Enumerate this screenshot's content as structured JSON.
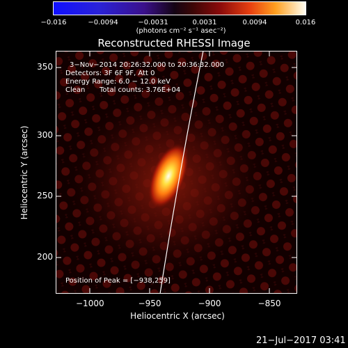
{
  "colorbar": {
    "tick_labels": [
      "−0.016",
      "−0.0094",
      "−0.0031",
      "0.0031",
      "0.0094",
      "0.016"
    ],
    "units_label": "(photons cm⁻² s⁻¹ asec⁻²)"
  },
  "title": "Reconstructed RHESSI Image",
  "info": {
    "time_range": "3−Nov−2014 20:26:32.000 to 20:36:32.000",
    "detectors": "Detectors: 3F 6F 9F, Att 0",
    "energy_range": "Energy Range: 6.0 − 12.0 keV",
    "algorithm": "Clean",
    "total_counts": "Total counts: 3.76E+04"
  },
  "peak_label": "Position of Peak = [−938,259]",
  "axes": {
    "x_label": "Heliocentric X (arcsec)",
    "y_label": "Heliocentric Y (arcsec)",
    "x_ticks": [
      "−1000",
      "−950",
      "−900",
      "−850"
    ],
    "y_ticks": [
      "200",
      "250",
      "300",
      "350"
    ]
  },
  "footer_timestamp": "21−Jul−2017 03:41",
  "colors": {
    "background": "#000000",
    "axes": "#ffffff",
    "limb": "#ffffff"
  }
}
